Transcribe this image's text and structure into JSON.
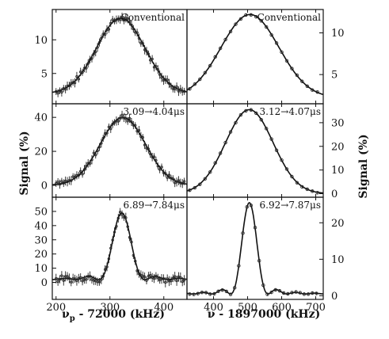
{
  "figure": {
    "left_ylabel": "Signal (%)",
    "right_ylabel": "Signal (%)",
    "left_xlabel": "ν",
    "left_xlabel_sub": "p",
    "left_xlabel_rest": " - 72000 (kHz)",
    "right_xlabel": "ν - 1897000 (kHz)"
  },
  "chart_data": [
    {
      "type": "scatter",
      "label": "Conventional",
      "column": "left",
      "row": 0,
      "xlim": [
        193,
        443
      ],
      "ylim": [
        0.5,
        14.5
      ],
      "xticks": [
        200,
        300,
        400
      ],
      "yticks": [
        5,
        10
      ],
      "fit": {
        "model": "gaussian",
        "amplitude": 11.2,
        "center": 320,
        "sigma": 45,
        "offset": 2.0
      },
      "points": {
        "x_start": 200,
        "x_end": 440,
        "step": 3.5
      }
    },
    {
      "type": "scatter",
      "label": "Conventional",
      "column": "right",
      "row": 0,
      "xlim": [
        322,
        722
      ],
      "ylim": [
        1.5,
        12.8
      ],
      "xticks": [
        400,
        500,
        600,
        700
      ],
      "yticks": [
        5,
        10
      ],
      "fit": {
        "model": "gaussian",
        "amplitude": 10.0,
        "center": 507,
        "sigma": 85,
        "offset": 2.2
      },
      "points": {
        "x_start": 330,
        "x_end": 705,
        "step": 15
      }
    },
    {
      "type": "scatter",
      "label": "3.09→4.04μs",
      "column": "left",
      "row": 1,
      "xlim": [
        193,
        443
      ],
      "ylim": [
        -7,
        48
      ],
      "xticks": [
        200,
        300,
        400
      ],
      "yticks": [
        0,
        20,
        40
      ],
      "fit": {
        "model": "gaussian",
        "amplitude": 40,
        "center": 324,
        "sigma": 42,
        "offset": 0
      },
      "points": {
        "x_start": 200,
        "x_end": 440,
        "step": 3.5
      }
    },
    {
      "type": "scatter",
      "label": "3.12→4.07μs",
      "column": "right",
      "row": 1,
      "xlim": [
        322,
        722
      ],
      "ylim": [
        -1.5,
        38
      ],
      "xticks": [
        400,
        500,
        600,
        700
      ],
      "yticks": [
        0,
        10,
        20,
        30
      ],
      "fit": {
        "model": "gaussian",
        "amplitude": 35.5,
        "center": 505,
        "sigma": 70,
        "offset": 0
      },
      "points": {
        "x_start": 330,
        "x_end": 705,
        "step": 15
      }
    },
    {
      "type": "scatter",
      "label": "6.89→7.84μs",
      "column": "left",
      "row": 2,
      "xlim": [
        193,
        443
      ],
      "ylim": [
        -12,
        60
      ],
      "xticks": [
        200,
        300,
        400
      ],
      "yticks": [
        0,
        10,
        20,
        30,
        40,
        50
      ],
      "fit": {
        "model": "sinc2",
        "amplitude": 47,
        "center": 322,
        "half_width": 43,
        "offset": 2
      },
      "points": {
        "x_start": 200,
        "x_end": 440,
        "step": 3.5
      }
    },
    {
      "type": "scatter",
      "label": "6.92→7.87μs",
      "column": "right",
      "row": 2,
      "xlim": [
        322,
        722
      ],
      "ylim": [
        -1,
        27
      ],
      "xticks": [
        400,
        500,
        600,
        700
      ],
      "yticks": [
        0,
        10,
        20
      ],
      "fit": {
        "model": "sinc2",
        "amplitude": 25,
        "center": 505,
        "half_width": 55,
        "offset": 0.5
      },
      "points": {
        "x_start": 330,
        "x_end": 705,
        "step": 12
      }
    }
  ]
}
